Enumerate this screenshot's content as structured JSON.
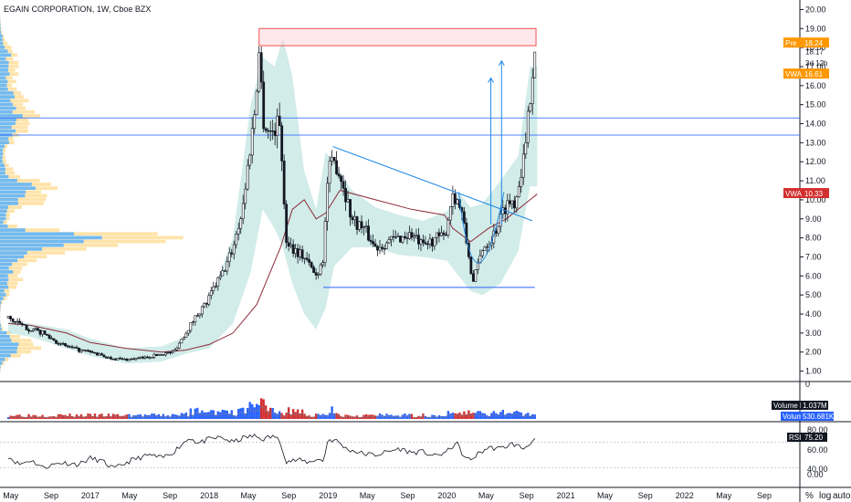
{
  "title": "EGAIN CORPORATION, 1W, Cboe BZX",
  "colors": {
    "up": "#26a69a",
    "down": "#ef5350",
    "vol_up": "#2962ff",
    "vol_down": "#d32f2f",
    "band": "#b2dfdb",
    "vwap": "#8e2b3a",
    "hline": "#2962ff",
    "pre_tag": "#ff9800",
    "vwap_tag": "#ff9800",
    "vwap2_tag": "#d32f2f",
    "volume_tag": "#2962ff",
    "rsi_line": "#131722"
  },
  "chart_data": [
    {
      "type": "candlestick",
      "title": "EGAIN CORPORATION, 1W, Cboe BZX",
      "ylim": [
        0.5,
        20.5
      ],
      "yticks": [
        "1.00",
        "2.00",
        "3.00",
        "4.00",
        "5.00",
        "6.00",
        "7.00",
        "8.00",
        "9.00",
        "10.00",
        "11.00",
        "12.00",
        "13.00",
        "14.00",
        "15.00",
        "16.00",
        "17.00",
        "18.00",
        "19.00",
        "20.00"
      ],
      "xticks": [
        "May",
        "Sep",
        "2017",
        "May",
        "Sep",
        "2018",
        "May",
        "Sep",
        "2019",
        "May",
        "Sep",
        "2020",
        "May",
        "Sep",
        "2021",
        "May",
        "Sep",
        "2022",
        "May",
        "Sep"
      ],
      "close_path": [
        [
          2016.31,
          3.8
        ],
        [
          2016.45,
          3.3
        ],
        [
          2016.6,
          3.0
        ],
        [
          2016.75,
          2.4
        ],
        [
          2016.9,
          2.1
        ],
        [
          2017.0,
          2.0
        ],
        [
          2017.15,
          1.7
        ],
        [
          2017.3,
          1.6
        ],
        [
          2017.45,
          1.7
        ],
        [
          2017.6,
          1.9
        ],
        [
          2017.7,
          2.0
        ],
        [
          2017.8,
          3.0
        ],
        [
          2017.9,
          4.0
        ],
        [
          2017.98,
          4.6
        ],
        [
          2018.05,
          5.5
        ],
        [
          2018.12,
          6.2
        ],
        [
          2018.2,
          7.5
        ],
        [
          2018.28,
          9.5
        ],
        [
          2018.34,
          12.5
        ],
        [
          2018.38,
          14.5
        ],
        [
          2018.42,
          17.8
        ],
        [
          2018.46,
          14.0
        ],
        [
          2018.52,
          13.5
        ],
        [
          2018.6,
          14.2
        ],
        [
          2018.64,
          8.0
        ],
        [
          2018.7,
          7.5
        ],
        [
          2018.8,
          7.0
        ],
        [
          2018.9,
          6.0
        ],
        [
          2018.96,
          7.0
        ],
        [
          2019.0,
          11.5
        ],
        [
          2019.06,
          12.0
        ],
        [
          2019.12,
          11.0
        ],
        [
          2019.2,
          9.0
        ],
        [
          2019.3,
          8.5
        ],
        [
          2019.4,
          7.5
        ],
        [
          2019.5,
          7.8
        ],
        [
          2019.6,
          8.0
        ],
        [
          2019.7,
          8.2
        ],
        [
          2019.8,
          7.5
        ],
        [
          2019.9,
          8.0
        ],
        [
          2019.98,
          8.0
        ],
        [
          2020.05,
          10.4
        ],
        [
          2020.12,
          9.5
        ],
        [
          2020.18,
          7.2
        ],
        [
          2020.22,
          5.6
        ],
        [
          2020.3,
          7.5
        ],
        [
          2020.38,
          8.0
        ],
        [
          2020.45,
          9.0
        ],
        [
          2020.5,
          9.8
        ],
        [
          2020.58,
          10.0
        ],
        [
          2020.62,
          11.5
        ],
        [
          2020.66,
          12.5
        ],
        [
          2020.68,
          14.0
        ],
        [
          2020.72,
          17.0
        ],
        [
          2020.74,
          18.2
        ]
      ],
      "bands": {
        "x": [
          2016.31,
          2016.5,
          2016.8,
          2017.0,
          2017.3,
          2017.6,
          2017.8,
          2018.0,
          2018.2,
          2018.35,
          2018.45,
          2018.55,
          2018.62,
          2018.7,
          2018.8,
          2018.9,
          2018.98,
          2019.05,
          2019.2,
          2019.4,
          2019.6,
          2019.8,
          2020.0,
          2020.1,
          2020.2,
          2020.3,
          2020.45,
          2020.6,
          2020.7,
          2020.76
        ],
        "upper": [
          3.6,
          3.5,
          3.2,
          2.7,
          2.2,
          2.3,
          2.8,
          4.6,
          8.0,
          15.0,
          17.5,
          17.0,
          18.5,
          16.5,
          11.5,
          9.5,
          12.5,
          12.0,
          10.5,
          9.6,
          9.2,
          8.9,
          9.4,
          10.4,
          9.6,
          9.8,
          11.0,
          12.3,
          17.0,
          17.0
        ],
        "lower": [
          3.0,
          2.8,
          2.2,
          1.8,
          1.4,
          1.5,
          1.9,
          2.2,
          3.5,
          6.2,
          9.5,
          8.5,
          7.5,
          5.6,
          4.0,
          3.2,
          4.3,
          6.5,
          7.5,
          7.5,
          7.1,
          7.0,
          6.8,
          6.0,
          5.2,
          5.0,
          5.6,
          7.3,
          10.7,
          10.7
        ]
      },
      "vwap": {
        "x": [
          2016.31,
          2016.5,
          2016.8,
          2017.0,
          2017.3,
          2017.6,
          2017.8,
          2018.0,
          2018.2,
          2018.4,
          2018.6,
          2018.7,
          2018.8,
          2018.9,
          2018.98,
          2019.1,
          2019.4,
          2019.7,
          2019.98,
          2020.05,
          2020.2,
          2020.35,
          2020.5,
          2020.6,
          2020.7,
          2020.76
        ],
        "y": [
          3.5,
          3.4,
          3.0,
          2.5,
          2.2,
          2.0,
          2.1,
          2.4,
          3.0,
          4.5,
          7.5,
          9.5,
          10.0,
          9.0,
          9.3,
          10.5,
          10.0,
          9.5,
          9.2,
          8.5,
          7.8,
          8.5,
          9.0,
          9.5,
          10.0,
          10.3
        ]
      },
      "hlines": [
        14.3,
        13.4
      ],
      "support": {
        "x": [
          2018.96,
          2020.74
        ],
        "y": 5.4
      },
      "resistance_box": {
        "x0": 2018.42,
        "x1": 2020.75,
        "y0": 18.1,
        "y1": 19.0
      },
      "trendline": {
        "from": [
          2019.04,
          12.8
        ],
        "to": [
          2020.72,
          8.9
        ]
      },
      "cup": {
        "from": [
          2020.1,
          10.4
        ],
        "bottom": [
          2020.24,
          4.9
        ],
        "to": [
          2020.48,
          10.4
        ]
      },
      "arrows": [
        {
          "x": 2020.37,
          "from": 8.7,
          "to": 16.4
        },
        {
          "x": 2020.46,
          "from": 8.7,
          "to": 17.3
        }
      ],
      "right_labels": [
        {
          "text": "Pre",
          "value": "18.24",
          "y": 18.24,
          "kind": "pre"
        },
        {
          "text": "",
          "value": "18.17",
          "y": 17.8,
          "kind": "plain"
        },
        {
          "text": "",
          "value": "3d 12h",
          "y": 17.2,
          "kind": "plain"
        },
        {
          "text": "VWAP",
          "value": "16.61",
          "y": 16.61,
          "kind": "vwap"
        },
        {
          "text": "VWAP",
          "value": "10.33",
          "y": 10.33,
          "kind": "vwap2"
        }
      ]
    },
    {
      "type": "bar",
      "title": "Volume",
      "label": "Volume MA",
      "ma_value": "1.037M",
      "volume_label": "Volume",
      "volume_value": "530.681K",
      "ytick": "0"
    },
    {
      "type": "line",
      "title": "RSI",
      "value": "75.20",
      "ylim": [
        0,
        100
      ],
      "yticks": [
        "40.00",
        "60.00",
        "80.00",
        "0.00"
      ],
      "points": [
        [
          2016.31,
          48
        ],
        [
          2016.4,
          35
        ],
        [
          2016.5,
          42
        ],
        [
          2016.6,
          30
        ],
        [
          2016.75,
          38
        ],
        [
          2016.9,
          35
        ],
        [
          2017.0,
          45
        ],
        [
          2017.1,
          40
        ],
        [
          2017.2,
          28
        ],
        [
          2017.35,
          42
        ],
        [
          2017.5,
          50
        ],
        [
          2017.6,
          45
        ],
        [
          2017.7,
          55
        ],
        [
          2017.8,
          72
        ],
        [
          2017.85,
          78
        ],
        [
          2017.9,
          68
        ],
        [
          2018.0,
          75
        ],
        [
          2018.1,
          78
        ],
        [
          2018.2,
          70
        ],
        [
          2018.3,
          78
        ],
        [
          2018.38,
          80
        ],
        [
          2018.45,
          75
        ],
        [
          2018.5,
          78
        ],
        [
          2018.55,
          80
        ],
        [
          2018.6,
          70
        ],
        [
          2018.65,
          40
        ],
        [
          2018.75,
          42
        ],
        [
          2018.85,
          38
        ],
        [
          2018.9,
          44
        ],
        [
          2018.96,
          40
        ],
        [
          2019.0,
          75
        ],
        [
          2019.08,
          72
        ],
        [
          2019.15,
          60
        ],
        [
          2019.3,
          52
        ],
        [
          2019.4,
          50
        ],
        [
          2019.5,
          55
        ],
        [
          2019.6,
          60
        ],
        [
          2019.7,
          54
        ],
        [
          2019.8,
          55
        ],
        [
          2019.9,
          48
        ],
        [
          2020.0,
          55
        ],
        [
          2020.08,
          70
        ],
        [
          2020.15,
          45
        ],
        [
          2020.2,
          42
        ],
        [
          2020.25,
          50
        ],
        [
          2020.35,
          62
        ],
        [
          2020.45,
          60
        ],
        [
          2020.55,
          68
        ],
        [
          2020.65,
          60
        ],
        [
          2020.7,
          70
        ],
        [
          2020.75,
          75
        ]
      ]
    }
  ],
  "bottom_right": {
    "percent": "%",
    "log": "log",
    "auto": "auto"
  }
}
